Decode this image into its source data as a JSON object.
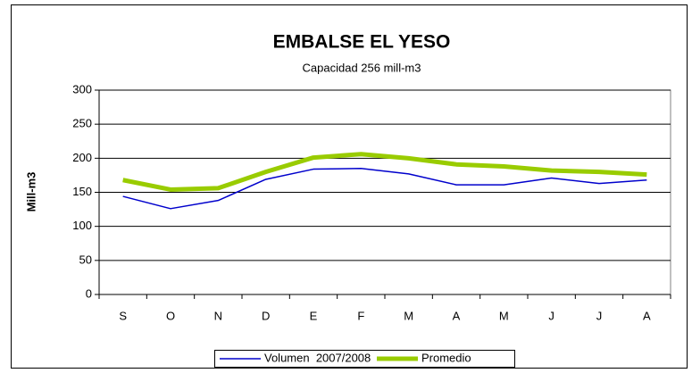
{
  "chart_data": {
    "type": "line",
    "title": "EMBALSE EL YESO",
    "subtitle": "Capacidad 256 mill-m3",
    "y_label": "Mill-m3",
    "categories": [
      "S",
      "O",
      "N",
      "D",
      "E",
      "F",
      "M",
      "A",
      "M",
      "J",
      "J",
      "A"
    ],
    "series": [
      {
        "name": "Volumen  2007/2008",
        "color": "#0000cc",
        "width": 1.5,
        "values": [
          144,
          126,
          138,
          169,
          184,
          185,
          177,
          161,
          161,
          171,
          163,
          168
        ]
      },
      {
        "name": "Promedio",
        "color": "#99cc00",
        "width": 5,
        "values": [
          168,
          154,
          156,
          180,
          201,
          206,
          200,
          191,
          188,
          182,
          180,
          176
        ]
      }
    ],
    "ylim": [
      0,
      300
    ],
    "yticks": [
      0,
      50,
      100,
      150,
      200,
      250,
      300
    ],
    "grid": true
  }
}
